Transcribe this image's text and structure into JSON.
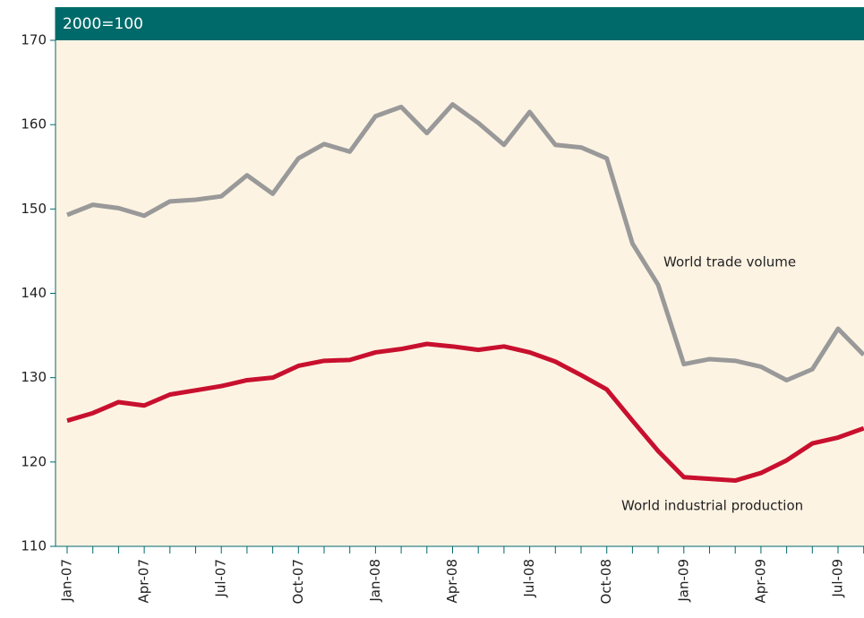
{
  "chart_data": {
    "type": "line",
    "title": "2000=100",
    "categories": [
      "Jan-07",
      null,
      null,
      "Apr-07",
      null,
      null,
      "Jul-07",
      null,
      null,
      "Oct-07",
      null,
      null,
      "Jan-08",
      null,
      null,
      "Apr-08",
      null,
      null,
      "Jul-08",
      null,
      null,
      "Oct-08",
      null,
      null,
      "Jan-09",
      null,
      null,
      "Apr-09",
      null,
      null,
      "Jul-09",
      null
    ],
    "series": [
      {
        "name": "World trade volume",
        "color": "#999999",
        "values": [
          149.3,
          150.5,
          150.1,
          149.2,
          150.9,
          151.1,
          151.5,
          154.0,
          151.8,
          156.0,
          157.7,
          156.8,
          161.0,
          162.1,
          159.0,
          162.4,
          160.2,
          157.6,
          161.5,
          157.6,
          157.3,
          156.0,
          145.9,
          141.0,
          131.6,
          132.2,
          132.0,
          131.3,
          129.7,
          131.0,
          135.8,
          132.7
        ]
      },
      {
        "name": "World industrial production",
        "color": "#c8102e",
        "values": [
          124.9,
          125.8,
          127.1,
          126.7,
          128.0,
          128.5,
          129.0,
          129.7,
          130.0,
          131.4,
          132.0,
          132.1,
          133.0,
          133.4,
          134.0,
          133.7,
          133.3,
          133.7,
          133.0,
          131.9,
          130.3,
          128.6,
          124.9,
          121.3,
          118.2,
          118.0,
          117.8,
          118.7,
          120.2,
          122.2,
          122.9,
          124.0
        ]
      }
    ],
    "ylim": [
      110,
      170
    ],
    "yticks": [
      110,
      120,
      130,
      140,
      150,
      160,
      170
    ]
  }
}
